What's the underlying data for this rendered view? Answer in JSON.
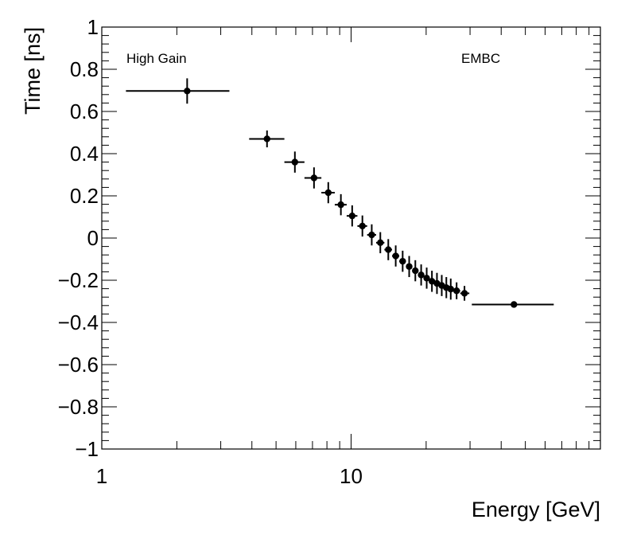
{
  "chart_data": {
    "type": "scatter",
    "title": "",
    "xlabel": "Energy [GeV]",
    "ylabel": "Time [ns]",
    "xscale": "log",
    "xlim": [
      1,
      100
    ],
    "ylim": [
      -1,
      1
    ],
    "x_tick_labels": [
      {
        "value": 1,
        "label": "1"
      },
      {
        "value": 10,
        "label": "10"
      }
    ],
    "y_tick_labels": [
      {
        "value": 1,
        "label": "1"
      },
      {
        "value": 0.8,
        "label": "0.8"
      },
      {
        "value": 0.6,
        "label": "0.6"
      },
      {
        "value": 0.4,
        "label": "0.4"
      },
      {
        "value": 0.2,
        "label": "0.2"
      },
      {
        "value": 0,
        "label": "0"
      },
      {
        "value": -0.2,
        "label": "−0.2"
      },
      {
        "value": -0.4,
        "label": "−0.4"
      },
      {
        "value": -0.6,
        "label": "−0.6"
      },
      {
        "value": -0.8,
        "label": "−0.8"
      },
      {
        "value": -1,
        "label": "−1"
      }
    ],
    "annotations": {
      "left": "High Gain",
      "right": "EMBC"
    },
    "series": [
      {
        "name": "EMBC High Gain",
        "marker": "circle",
        "color": "#000000",
        "points": [
          {
            "x": 2.2,
            "xlo": 1.25,
            "xhi": 3.25,
            "y": 0.697,
            "yerr": 0.06
          },
          {
            "x": 4.6,
            "xlo": 3.9,
            "xhi": 5.4,
            "y": 0.47,
            "yerr": 0.04
          },
          {
            "x": 5.95,
            "xlo": 5.4,
            "xhi": 6.5,
            "y": 0.36,
            "yerr": 0.05
          },
          {
            "x": 7.1,
            "xlo": 6.5,
            "xhi": 7.6,
            "y": 0.285,
            "yerr": 0.05
          },
          {
            "x": 8.1,
            "xlo": 7.6,
            "xhi": 8.6,
            "y": 0.215,
            "yerr": 0.05
          },
          {
            "x": 9.1,
            "xlo": 8.6,
            "xhi": 9.6,
            "y": 0.158,
            "yerr": 0.05
          },
          {
            "x": 10.1,
            "xlo": 9.6,
            "xhi": 10.6,
            "y": 0.105,
            "yerr": 0.05
          },
          {
            "x": 11.1,
            "xlo": 10.6,
            "xhi": 11.6,
            "y": 0.057,
            "yerr": 0.05
          },
          {
            "x": 12.1,
            "xlo": 11.6,
            "xhi": 12.6,
            "y": 0.015,
            "yerr": 0.05
          },
          {
            "x": 13.1,
            "xlo": 12.6,
            "xhi": 13.6,
            "y": -0.022,
            "yerr": 0.05
          },
          {
            "x": 14.1,
            "xlo": 13.6,
            "xhi": 14.6,
            "y": -0.055,
            "yerr": 0.05
          },
          {
            "x": 15.1,
            "xlo": 14.6,
            "xhi": 15.6,
            "y": -0.085,
            "yerr": 0.05
          },
          {
            "x": 16.1,
            "xlo": 15.6,
            "xhi": 16.6,
            "y": -0.11,
            "yerr": 0.05
          },
          {
            "x": 17.1,
            "xlo": 16.6,
            "xhi": 17.6,
            "y": -0.135,
            "yerr": 0.05
          },
          {
            "x": 18.1,
            "xlo": 17.6,
            "xhi": 18.6,
            "y": -0.155,
            "yerr": 0.05
          },
          {
            "x": 19.1,
            "xlo": 18.6,
            "xhi": 19.6,
            "y": -0.175,
            "yerr": 0.05
          },
          {
            "x": 20.1,
            "xlo": 19.6,
            "xhi": 20.6,
            "y": -0.19,
            "yerr": 0.05
          },
          {
            "x": 21.1,
            "xlo": 20.6,
            "xhi": 21.6,
            "y": -0.205,
            "yerr": 0.05
          },
          {
            "x": 22.1,
            "xlo": 21.6,
            "xhi": 22.6,
            "y": -0.215,
            "yerr": 0.05
          },
          {
            "x": 23.1,
            "xlo": 22.6,
            "xhi": 23.6,
            "y": -0.225,
            "yerr": 0.05
          },
          {
            "x": 24.1,
            "xlo": 23.6,
            "xhi": 24.6,
            "y": -0.235,
            "yerr": 0.05
          },
          {
            "x": 25.1,
            "xlo": 24.6,
            "xhi": 25.6,
            "y": -0.242,
            "yerr": 0.05
          },
          {
            "x": 26.5,
            "xlo": 25.6,
            "xhi": 27.4,
            "y": -0.25,
            "yerr": 0.04
          },
          {
            "x": 28.5,
            "xlo": 27.4,
            "xhi": 29.8,
            "y": -0.262,
            "yerr": 0.035
          },
          {
            "x": 45.0,
            "xlo": 30.5,
            "xhi": 65.0,
            "y": -0.315,
            "yerr": 0.01
          }
        ]
      }
    ]
  }
}
